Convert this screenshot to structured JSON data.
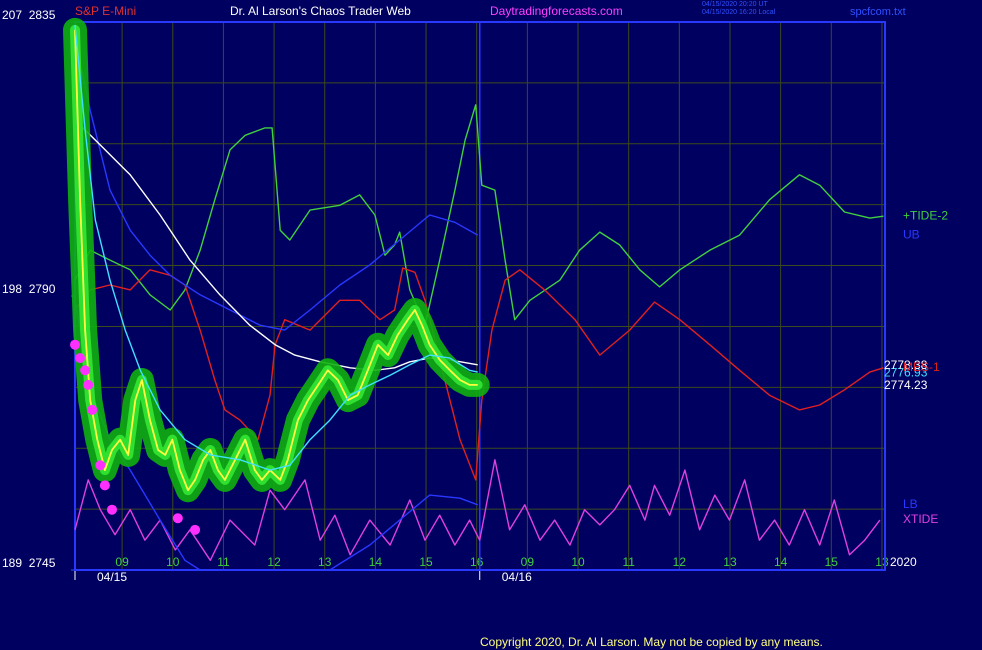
{
  "chart_data": {
    "type": "line",
    "header": {
      "symbol": "S&P E-Mini",
      "title": "Dr. Al Larson's Chaos Trader Web",
      "site": "Daytradingforecasts.com",
      "stamp_ut": "04/15/2020 20:20 UT",
      "stamp_local": "04/15/2020 16:20 Local",
      "file": "spcfcom.txt"
    },
    "copyright": "Copyright 2020, Dr. Al Larson. May not be copied by any means.",
    "corner_text": "2020",
    "xlim": [
      0.07,
      16.06
    ],
    "ylim": [
      2745,
      2835
    ],
    "yticks": [
      {
        "value": 2745,
        "label": "189  2745"
      },
      {
        "value": 2790,
        "label": "198  2790"
      },
      {
        "value": 2835,
        "label": "207  2835"
      }
    ],
    "ygrid": [
      2755,
      2765,
      2775,
      2785,
      2795,
      2805,
      2815,
      2825
    ],
    "xticks": [
      {
        "value": 1,
        "label": "09"
      },
      {
        "value": 2,
        "label": "10"
      },
      {
        "value": 3,
        "label": "11"
      },
      {
        "value": 4,
        "label": "12"
      },
      {
        "value": 5,
        "label": "13"
      },
      {
        "value": 6,
        "label": "14"
      },
      {
        "value": 7,
        "label": "15"
      },
      {
        "value": 8,
        "label": "16"
      },
      {
        "value": 9,
        "label": "09"
      },
      {
        "value": 10,
        "label": "10"
      },
      {
        "value": 11,
        "label": "11"
      },
      {
        "value": 12,
        "label": "12"
      },
      {
        "value": 13,
        "label": "13"
      },
      {
        "value": 14,
        "label": "14"
      },
      {
        "value": 15,
        "label": "15"
      },
      {
        "value": 16,
        "label": "13"
      }
    ],
    "date_labels": [
      {
        "value": 0.07,
        "label": "04/15"
      },
      {
        "value": 8.06,
        "label": "04/16"
      }
    ],
    "day_divider": 8.06,
    "grid": true,
    "background": "#000060",
    "series": [
      {
        "color": "#ffff40",
        "halo_color": "#10b010",
        "style": "line",
        "end_label": 2774.23,
        "end_label_color": "#ffffff",
        "x": [
          0.07,
          0.17,
          0.27,
          0.37,
          0.51,
          0.66,
          0.8,
          0.96,
          1.12,
          1.26,
          1.39,
          1.55,
          1.71,
          1.85,
          1.99,
          2.14,
          2.3,
          2.44,
          2.6,
          2.74,
          2.89,
          3.03,
          3.23,
          3.43,
          3.62,
          3.76,
          3.92,
          4.12,
          4.27,
          4.47,
          4.67,
          4.87,
          5.06,
          5.26,
          5.46,
          5.65,
          5.85,
          6.05,
          6.25,
          6.44,
          6.64,
          6.78,
          6.92,
          7.07,
          7.27,
          7.47,
          7.67,
          7.86,
          8.02
        ],
        "values": [
          2833.7,
          2805.8,
          2784.4,
          2772.9,
          2766.4,
          2761.4,
          2764.7,
          2766.4,
          2763.9,
          2772.9,
          2776.2,
          2769.6,
          2764.7,
          2763.9,
          2766.4,
          2761.4,
          2758.1,
          2759.8,
          2763.1,
          2764.7,
          2761.4,
          2759.8,
          2763.1,
          2766.4,
          2761.4,
          2759.8,
          2761.4,
          2759.8,
          2763.1,
          2769.6,
          2772.9,
          2775.4,
          2777.8,
          2776.2,
          2772.9,
          2773.7,
          2777.8,
          2782.0,
          2780.3,
          2783.6,
          2786.1,
          2787.7,
          2785.2,
          2782.0,
          2779.5,
          2777.8,
          2776.2,
          2775.4,
          2775.4
        ]
      },
      {
        "color": "#40e0ff",
        "style": "line",
        "end_label": 2776.93,
        "end_label_color": "#40e0ff",
        "x": [
          0.07,
          0.27,
          0.47,
          0.76,
          1.06,
          1.36,
          1.75,
          2.24,
          2.74,
          3.33,
          3.92,
          4.31,
          4.71,
          5.1,
          5.5,
          5.89,
          6.29,
          6.68,
          7.07,
          7.47,
          7.86,
          8.02
        ],
        "values": [
          2834.5,
          2817.3,
          2802.5,
          2792.6,
          2784.4,
          2777.8,
          2771.3,
          2766.4,
          2763.9,
          2763.1,
          2761.4,
          2762.2,
          2766.4,
          2769.6,
          2773.7,
          2775.4,
          2777.0,
          2778.7,
          2780.3,
          2779.8,
          2777.8,
          2777.5
        ]
      },
      {
        "color": "#ffffff",
        "style": "line",
        "end_label": 2778.38,
        "end_label_color": "#ffffff",
        "x": [
          0.07,
          0.57,
          1.16,
          1.75,
          2.34,
          2.93,
          3.52,
          4.02,
          4.41,
          4.91,
          5.5,
          5.99,
          6.38,
          6.68,
          7.07,
          7.47,
          8.02
        ],
        "values": [
          2818.9,
          2814.8,
          2809.9,
          2803.3,
          2795.9,
          2790.2,
          2785.2,
          2782.0,
          2780.3,
          2779.2,
          2778.2,
          2777.8,
          2778.2,
          2779.2,
          2779.8,
          2779.5,
          2778.7
        ]
      },
      {
        "name": "+TIDE-2",
        "color": "#40d040",
        "style": "line",
        "x": [
          0.07,
          0.37,
          0.76,
          1.16,
          1.55,
          1.95,
          2.24,
          2.54,
          2.83,
          3.13,
          3.43,
          3.82,
          3.96,
          4.12,
          4.31,
          4.71,
          5.3,
          5.69,
          5.99,
          6.19,
          6.38,
          6.48,
          6.68,
          6.98,
          7.27,
          7.57,
          7.77,
          7.98,
          8.1,
          8.36,
          8.56,
          8.75,
          9.05,
          9.64,
          10.03,
          10.43,
          10.82,
          11.22,
          11.61,
          12.01,
          12.6,
          13.19,
          13.78,
          14.37,
          14.77,
          15.26,
          15.76,
          16.03
        ],
        "values": [
          2792.6,
          2797.5,
          2795.9,
          2794.3,
          2790.2,
          2787.7,
          2791.0,
          2797.5,
          2805.8,
          2814.0,
          2816.4,
          2817.6,
          2817.6,
          2800.8,
          2799.2,
          2804.1,
          2804.9,
          2806.6,
          2803.3,
          2796.7,
          2798.4,
          2800.5,
          2791.0,
          2785.2,
          2795.9,
          2807.4,
          2815.6,
          2821.4,
          2808.2,
          2807.4,
          2795.9,
          2786.1,
          2789.3,
          2792.6,
          2797.5,
          2800.5,
          2798.4,
          2794.3,
          2791.5,
          2794.3,
          2797.5,
          2800.0,
          2805.8,
          2809.9,
          2808.2,
          2803.8,
          2802.8,
          2803.1
        ]
      },
      {
        "name": "UB",
        "color": "#2838ff",
        "style": "line",
        "x": [
          0.07,
          0.37,
          0.76,
          1.16,
          1.55,
          1.95,
          2.54,
          3.13,
          3.72,
          4.21,
          4.71,
          5.3,
          5.89,
          6.48,
          7.07,
          7.57,
          8.02
        ],
        "values": [
          2832.0,
          2820.5,
          2807.4,
          2800.8,
          2796.7,
          2793.4,
          2790.2,
          2787.7,
          2785.2,
          2784.4,
          2787.7,
          2791.8,
          2795.1,
          2799.2,
          2803.3,
          2802.1,
          2800.0
        ]
      },
      {
        "name": "MES-1",
        "color": "#e02020",
        "style": "line",
        "x": [
          0.07,
          0.37,
          0.76,
          1.16,
          1.55,
          1.95,
          2.24,
          2.54,
          2.83,
          3.03,
          3.33,
          3.68,
          3.92,
          4.02,
          4.21,
          4.71,
          5.3,
          5.69,
          6.09,
          6.38,
          6.54,
          6.78,
          6.98,
          7.37,
          7.67,
          7.98,
          8.1,
          8.3,
          8.56,
          8.85,
          9.34,
          9.94,
          10.43,
          11.02,
          11.51,
          12.01,
          12.6,
          13.19,
          13.78,
          14.37,
          14.77,
          15.26,
          15.76,
          16.03
        ],
        "values": [
          2787.7,
          2791.0,
          2791.8,
          2791.0,
          2794.3,
          2793.4,
          2791.8,
          2784.4,
          2776.2,
          2771.3,
          2769.6,
          2766.4,
          2773.7,
          2782.0,
          2786.1,
          2784.4,
          2789.3,
          2789.3,
          2786.1,
          2787.7,
          2794.6,
          2793.9,
          2789.3,
          2776.2,
          2766.4,
          2759.8,
          2772.9,
          2784.4,
          2792.6,
          2794.3,
          2791.0,
          2786.1,
          2780.3,
          2784.4,
          2789.0,
          2786.1,
          2782.0,
          2777.8,
          2773.7,
          2771.3,
          2772.1,
          2774.6,
          2777.5,
          2778.2
        ]
      },
      {
        "name": "LB",
        "color": "#2838ff",
        "style": "line",
        "x": [
          0.07,
          0.37,
          0.76,
          1.16,
          1.75,
          2.24,
          2.54,
          3.5,
          5.1,
          5.89,
          6.48,
          7.07,
          7.67,
          8.02
        ],
        "values": [
          2789.3,
          2774.6,
          2766.4,
          2761.4,
          2753.2,
          2746.6,
          2745.0,
          null,
          2745.0,
          2749.1,
          2753.2,
          2757.3,
          2756.8,
          2755.7
        ]
      },
      {
        "name": "XTIDE",
        "color": "#e040e0",
        "style": "line",
        "x": [
          0.07,
          0.33,
          0.57,
          0.86,
          1.16,
          1.45,
          1.75,
          2.05,
          2.34,
          2.74,
          3.13,
          3.62,
          3.92,
          4.21,
          4.61,
          4.91,
          5.2,
          5.5,
          5.89,
          6.29,
          6.68,
          6.98,
          7.27,
          7.57,
          7.86,
          8.06,
          8.36,
          8.65,
          8.95,
          9.25,
          9.54,
          9.84,
          10.13,
          10.43,
          10.72,
          11.02,
          11.32,
          11.51,
          11.81,
          12.11,
          12.4,
          12.7,
          12.99,
          13.29,
          13.58,
          13.88,
          14.17,
          14.47,
          14.77,
          15.06,
          15.36,
          15.66,
          15.96
        ],
        "values": [
          2751.6,
          2759.8,
          2754.9,
          2750.8,
          2754.9,
          2749.9,
          2753.2,
          2748.3,
          2751.6,
          2746.6,
          2753.2,
          2749.1,
          2758.1,
          2754.9,
          2759.8,
          2749.9,
          2754.0,
          2747.5,
          2753.2,
          2749.1,
          2756.5,
          2749.9,
          2754.0,
          2749.1,
          2753.2,
          2749.9,
          2763.1,
          2751.6,
          2755.7,
          2749.9,
          2753.2,
          2749.1,
          2754.9,
          2752.4,
          2754.9,
          2758.9,
          2753.2,
          2758.9,
          2754.0,
          2761.4,
          2751.6,
          2757.3,
          2753.2,
          2759.8,
          2749.9,
          2753.2,
          2749.1,
          2754.9,
          2749.1,
          2756.5,
          2747.5,
          2749.9,
          2753.2
        ]
      },
      {
        "color": "#ff30ff",
        "style": "dots",
        "x": [
          0.07,
          0.17,
          0.27,
          0.33,
          0.41,
          0.57,
          0.66,
          0.8,
          2.1,
          2.44
        ],
        "values": [
          2782.0,
          2779.8,
          2777.8,
          2775.4,
          2771.3,
          2762.2,
          2758.9,
          2754.9,
          2753.5,
          2751.6
        ]
      }
    ]
  }
}
